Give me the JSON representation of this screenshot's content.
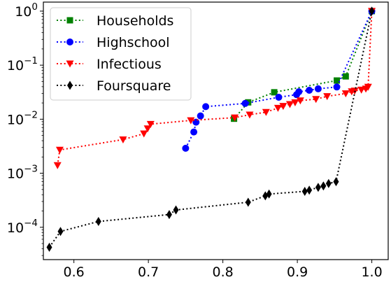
{
  "chart_data": {
    "type": "line",
    "title": "",
    "xlabel": "",
    "ylabel": "",
    "x_scale": "linear",
    "y_scale": "log",
    "xlim": [
      0.559,
      1.022
    ],
    "ylim": [
      2.52e-05,
      1.47
    ],
    "x_ticks": [
      0.6,
      0.7,
      0.8,
      0.9,
      1.0
    ],
    "x_tick_labels": [
      "0.6",
      "0.7",
      "0.8",
      "0.9",
      "1.0"
    ],
    "y_ticks": [
      0.0001,
      0.001,
      0.01,
      0.1,
      1
    ],
    "y_tick_labels": [
      {
        "base": "10",
        "exp": "−4"
      },
      {
        "base": "10",
        "exp": "−3"
      },
      {
        "base": "10",
        "exp": "−2"
      },
      {
        "base": "10",
        "exp": "−1"
      },
      {
        "base": "10",
        "exp": "0"
      }
    ],
    "grid": false,
    "legend_position": "top-left",
    "series": [
      {
        "name": "Households",
        "color": "#008000",
        "marker": "square",
        "linestyle": "dotted",
        "points": [
          [
            0.815,
            0.0102
          ],
          [
            0.834,
            0.0205
          ],
          [
            0.869,
            0.0315
          ],
          [
            0.953,
            0.052
          ],
          [
            0.965,
            0.062
          ],
          [
            1.0,
            1.0
          ]
        ]
      },
      {
        "name": "Highschool",
        "color": "#0000ff",
        "marker": "circle",
        "linestyle": "dotted",
        "points": [
          [
            0.75,
            0.0029
          ],
          [
            0.761,
            0.0058
          ],
          [
            0.764,
            0.0088
          ],
          [
            0.77,
            0.0115
          ],
          [
            0.777,
            0.0171
          ],
          [
            0.83,
            0.0196
          ],
          [
            0.875,
            0.0255
          ],
          [
            0.899,
            0.0285
          ],
          [
            0.902,
            0.0322
          ],
          [
            0.916,
            0.0343
          ],
          [
            0.928,
            0.0365
          ],
          [
            0.953,
            0.0395
          ],
          [
            1.0,
            1.0
          ]
        ]
      },
      {
        "name": "Infectious",
        "color": "#ff0000",
        "marker": "triangle-down",
        "linestyle": "dotted",
        "points": [
          [
            0.578,
            0.0014
          ],
          [
            0.581,
            0.0027
          ],
          [
            0.666,
            0.0042
          ],
          [
            0.694,
            0.0054
          ],
          [
            0.699,
            0.0067
          ],
          [
            0.703,
            0.0081
          ],
          [
            0.757,
            0.0095
          ],
          [
            0.816,
            0.0107
          ],
          [
            0.836,
            0.0121
          ],
          [
            0.858,
            0.0135
          ],
          [
            0.874,
            0.0161
          ],
          [
            0.881,
            0.0175
          ],
          [
            0.89,
            0.0189
          ],
          [
            0.897,
            0.0204
          ],
          [
            0.904,
            0.0221
          ],
          [
            0.925,
            0.0235
          ],
          [
            0.94,
            0.0265
          ],
          [
            0.965,
            0.0299
          ],
          [
            0.973,
            0.0326
          ],
          [
            0.977,
            0.0335
          ],
          [
            0.986,
            0.035
          ],
          [
            0.992,
            0.0365
          ],
          [
            0.995,
            0.0395
          ],
          [
            1.0,
            1.0
          ]
        ]
      },
      {
        "name": "Foursquare",
        "color": "#000000",
        "marker": "thin-diamond",
        "linestyle": "dotted",
        "points": [
          [
            0.567,
            4.26e-05
          ],
          [
            0.582,
            8.38e-05
          ],
          [
            0.633,
            0.000128
          ],
          [
            0.728,
            0.000172
          ],
          [
            0.737,
            0.000209
          ],
          [
            0.834,
            0.000291
          ],
          [
            0.857,
            0.000382
          ],
          [
            0.862,
            0.000412
          ],
          [
            0.91,
            0.000462
          ],
          [
            0.916,
            0.000487
          ],
          [
            0.928,
            0.000547
          ],
          [
            0.935,
            0.000582
          ],
          [
            0.942,
            0.000646
          ],
          [
            0.952,
            0.000699
          ],
          [
            1.0,
            1.0
          ]
        ]
      }
    ]
  }
}
